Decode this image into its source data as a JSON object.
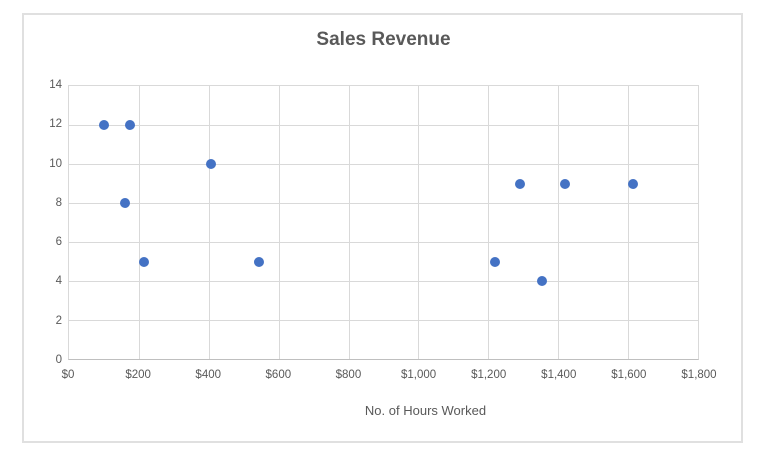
{
  "chart_data": {
    "type": "scatter",
    "title": "Sales Revenue",
    "xlabel": "No. of Hours Worked",
    "ylabel": "",
    "xlim": [
      0,
      1800
    ],
    "ylim": [
      0,
      14
    ],
    "x_tick_interval": 200,
    "y_tick_interval": 2,
    "grid": true,
    "legend": "none",
    "x_tick_labels": [
      "$0",
      "$200",
      "$400",
      "$600",
      "$800",
      "$1,000",
      "$1,200",
      "$1,400",
      "$1,600",
      "$1,800"
    ],
    "x_tick_values": [
      0,
      200,
      400,
      600,
      800,
      1000,
      1200,
      1400,
      1600,
      1800
    ],
    "y_tick_labels": [
      "0",
      "2",
      "4",
      "6",
      "8",
      "10",
      "12",
      "14"
    ],
    "y_tick_values": [
      0,
      2,
      4,
      6,
      8,
      10,
      12,
      14
    ],
    "points": [
      {
        "x": 100,
        "y": 12
      },
      {
        "x": 160,
        "y": 8
      },
      {
        "x": 175,
        "y": 12
      },
      {
        "x": 215,
        "y": 5
      },
      {
        "x": 405,
        "y": 10
      },
      {
        "x": 545,
        "y": 5
      },
      {
        "x": 1220,
        "y": 5
      },
      {
        "x": 1290,
        "y": 9
      },
      {
        "x": 1355,
        "y": 4
      },
      {
        "x": 1420,
        "y": 9
      },
      {
        "x": 1615,
        "y": 9
      }
    ],
    "colors": {
      "marker": "#4472C4",
      "gridline": "#D9D9D9",
      "axis_line": "#BFBFBF",
      "text": "#595959",
      "chart_border": "#E0E0E0",
      "background": "#FFFFFF"
    }
  }
}
